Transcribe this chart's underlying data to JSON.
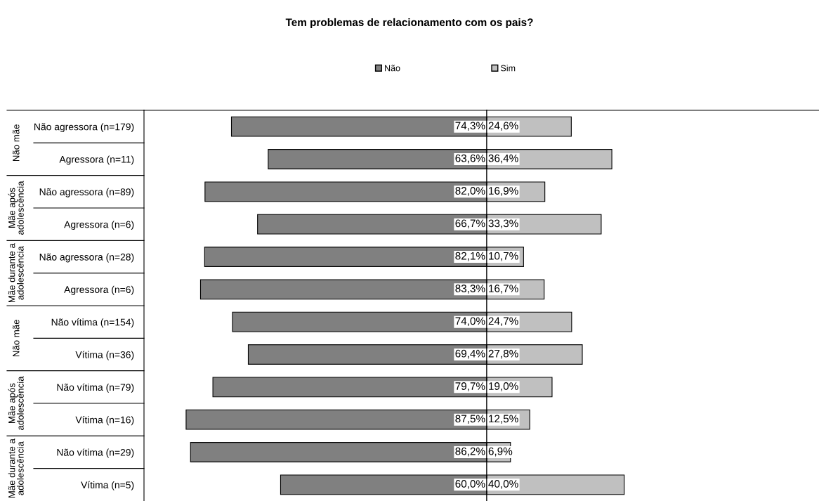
{
  "chart_data": [
    {
      "type": "bar",
      "orientation": "horizontal",
      "title": "Tem problemas de relacionamento com os pais?",
      "categories": [
        "Não agressora (n=179)",
        "Agressora (n=11)",
        "Não agressora (n=89)",
        "Agressora (n=6)",
        "Não agressora (n=28)",
        "Agressora (n=6)",
        "Não vítima (n=154)",
        "Vítima (n=36)",
        "Não vítima (n=79)",
        "Vítima (n=16)",
        "Não vítima (n=29)",
        "Vítima (n=5)"
      ],
      "annotations": [
        "Não mãe",
        "Mãe após adolescência",
        "Mãe durante a adolescência",
        "Não mãe",
        "Mãe após adolescência",
        "Mãe durante a adolescência"
      ],
      "series": [
        {
          "name": "Não",
          "color": "#808080",
          "values": [
            74.3,
            63.6,
            82.0,
            66.7,
            82.1,
            83.3,
            74.0,
            69.4,
            79.7,
            87.5,
            86.2,
            60.0
          ],
          "value_labels": [
            "74,3%",
            "63,6%",
            "82,0%",
            "66,7%",
            "82,1%",
            "83,3%",
            "74,0%",
            "69,4%",
            "79,7%",
            "87,5%",
            "86,2%",
            "60,0%"
          ]
        }
      ],
      "legend": "top right",
      "grid": false,
      "tick_labels": "y"
    },
    {
      "type": "bar",
      "orientation": "horizontal",
      "categories": [
        null,
        null,
        null,
        null,
        null,
        null,
        null,
        null,
        null,
        null,
        null,
        null
      ],
      "series": [
        {
          "name": "Sim",
          "color": "#c0c0c0",
          "values": [
            24.6,
            36.4,
            16.9,
            33.3,
            10.7,
            16.7,
            24.7,
            27.8,
            19.0,
            12.5,
            6.9,
            40.0
          ],
          "value_labels": [
            "24,6%",
            "36,4%",
            "16,9%",
            "33,3%",
            "10,7%",
            "16,7%",
            "24,7%",
            "27,8%",
            "19,0%",
            "12,5%",
            "6,9%",
            "40,0%"
          ]
        }
      ],
      "legend": "top left",
      "grid": false,
      "tick_labels": false
    }
  ]
}
